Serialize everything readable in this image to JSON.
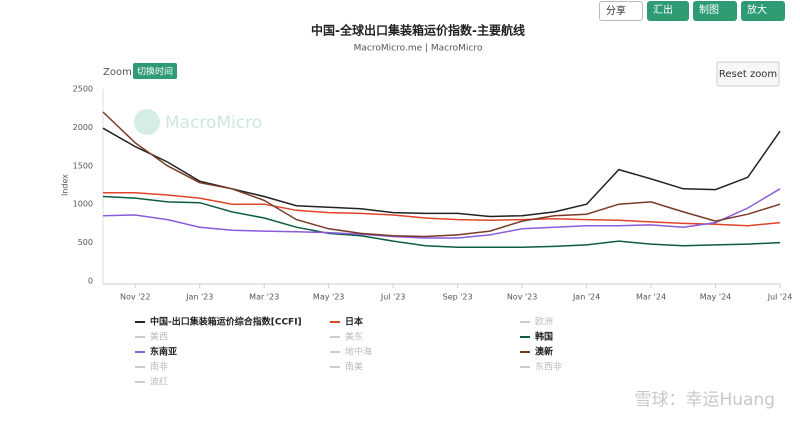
{
  "toolbar": {
    "share": "分享",
    "export": "汇出",
    "chart": "制图",
    "zoom": "放大",
    "zoom_label": "Zoom",
    "switch_time": "切换时间",
    "reset_zoom": "Reset zoom"
  },
  "watermark": "MacroMicro",
  "footer_watermark": "雪球：幸运Huang",
  "chart_data": {
    "type": "line",
    "title": "中国-全球出口集装箱运价指数-主要航线",
    "subtitle": "MacroMicro.me | MacroMicro",
    "y_label": "Index",
    "x": [
      "2022-10",
      "2022-11",
      "2022-12",
      "2023-01",
      "2023-02",
      "2023-03",
      "2023-04",
      "2023-05",
      "2023-06",
      "2023-07",
      "2023-08",
      "2023-09",
      "2023-10",
      "2023-11",
      "2023-12",
      "2024-01",
      "2024-02",
      "2024-03",
      "2024-04",
      "2024-05",
      "2024-06",
      "2024-07"
    ],
    "xlim": [
      "2022-10",
      "2024-07"
    ],
    "xticks": [
      {
        "value": "2022-11",
        "label": "Nov '22"
      },
      {
        "value": "2023-01",
        "label": "Jan '23"
      },
      {
        "value": "2023-03",
        "label": "Mar '23"
      },
      {
        "value": "2023-05",
        "label": "May '23"
      },
      {
        "value": "2023-07",
        "label": "Jul '23"
      },
      {
        "value": "2023-09",
        "label": "Sep '23"
      },
      {
        "value": "2023-11",
        "label": "Nov '23"
      },
      {
        "value": "2024-01",
        "label": "Jan '24"
      },
      {
        "value": "2024-03",
        "label": "Mar '24"
      },
      {
        "value": "2024-05",
        "label": "May '24"
      },
      {
        "value": "2024-07",
        "label": "Jul '24"
      }
    ],
    "ylim": [
      0,
      2500
    ],
    "yticks": [
      0,
      500,
      1000,
      1500,
      2000,
      2500
    ],
    "grid": false,
    "series": [
      {
        "name": "中国-出口集装箱运价综合指数[CCFI]",
        "color": "#222222",
        "visible": true,
        "values": [
          1990,
          1750,
          1550,
          1300,
          1200,
          1100,
          980,
          960,
          940,
          890,
          880,
          880,
          840,
          850,
          900,
          1000,
          1450,
          1330,
          1200,
          1190,
          1350,
          1950
        ]
      },
      {
        "name": "日本",
        "color": "#e0452a",
        "visible": true,
        "values": [
          1150,
          1150,
          1120,
          1080,
          1000,
          1000,
          920,
          890,
          880,
          860,
          820,
          800,
          790,
          800,
          810,
          800,
          790,
          770,
          750,
          740,
          720,
          760
        ]
      },
      {
        "name": "欧洲",
        "color": "#cccccc",
        "visible": false
      },
      {
        "name": "美西",
        "color": "#cccccc",
        "visible": false
      },
      {
        "name": "美东",
        "color": "#cccccc",
        "visible": false
      },
      {
        "name": "韩国",
        "color": "#0d5c44",
        "visible": true,
        "values": [
          1100,
          1080,
          1030,
          1020,
          900,
          820,
          700,
          620,
          590,
          520,
          460,
          440,
          440,
          440,
          450,
          470,
          520,
          480,
          460,
          470,
          480,
          500
        ]
      },
      {
        "name": "东南亚",
        "color": "#8a5cdb",
        "visible": true,
        "values": [
          850,
          860,
          800,
          700,
          660,
          650,
          640,
          630,
          610,
          580,
          560,
          560,
          600,
          680,
          700,
          720,
          720,
          730,
          700,
          760,
          950,
          1200
        ]
      },
      {
        "name": "地中海",
        "color": "#cccccc",
        "visible": false
      },
      {
        "name": "澳新",
        "color": "#7a3a2a",
        "visible": true,
        "values": [
          2200,
          1800,
          1500,
          1280,
          1200,
          1050,
          800,
          680,
          620,
          590,
          580,
          600,
          650,
          780,
          850,
          870,
          1000,
          1030,
          900,
          780,
          870,
          1000
        ]
      },
      {
        "name": "南非",
        "color": "#cccccc",
        "visible": false
      },
      {
        "name": "南美",
        "color": "#cccccc",
        "visible": false
      },
      {
        "name": "东西非",
        "color": "#cccccc",
        "visible": false
      },
      {
        "name": "波红",
        "color": "#cccccc",
        "visible": false
      }
    ]
  }
}
